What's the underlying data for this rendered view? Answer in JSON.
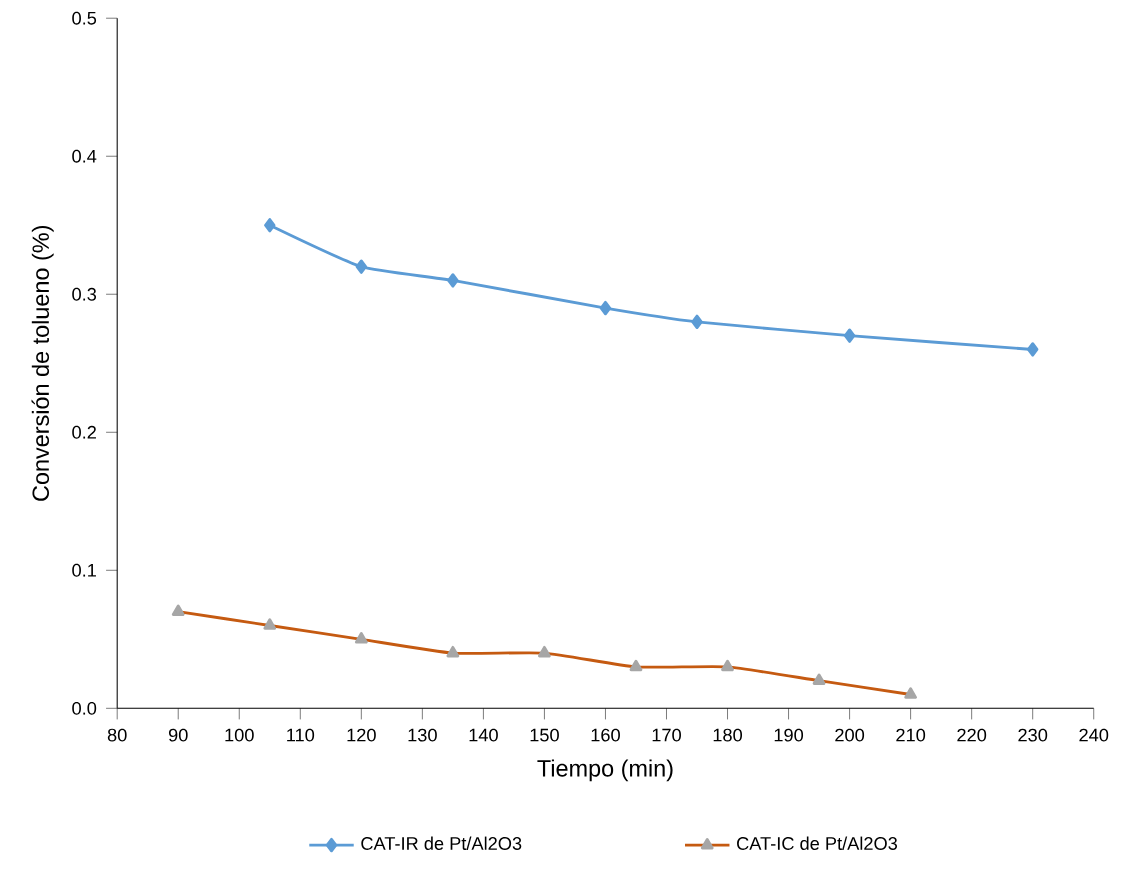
{
  "chart_data": {
    "type": "line",
    "xlabel": "Tiempo (min)",
    "ylabel": "Conversión de tolueno (%)",
    "xlim": [
      80,
      240
    ],
    "xticks": [
      80,
      90,
      100,
      110,
      120,
      130,
      140,
      150,
      160,
      170,
      180,
      190,
      200,
      210,
      220,
      230,
      240
    ],
    "ylim": [
      0,
      0.5
    ],
    "yticks": [
      {
        "value": 0,
        "label": "0.0"
      },
      0.1,
      0.2,
      0.3,
      0.4,
      0.5
    ],
    "grid": false,
    "legend": "bottom",
    "series": [
      {
        "name": "CAT-IR de Pt/Al2O3",
        "color": "#5b9bd5",
        "marker": "diamond",
        "x": [
          105,
          120,
          135,
          160,
          175,
          200,
          230
        ],
        "values": [
          0.35,
          0.32,
          0.31,
          0.29,
          0.28,
          0.27,
          0.26
        ]
      },
      {
        "name": "CAT-IC de Pt/Al2O3",
        "color": "#c55a11",
        "marker": "triangle",
        "x": [
          90,
          105,
          120,
          135,
          150,
          165,
          180,
          195,
          210
        ],
        "values": [
          0.07,
          0.06,
          0.05,
          0.04,
          0.04,
          0.03,
          0.03,
          0.02,
          0.01
        ]
      }
    ]
  }
}
